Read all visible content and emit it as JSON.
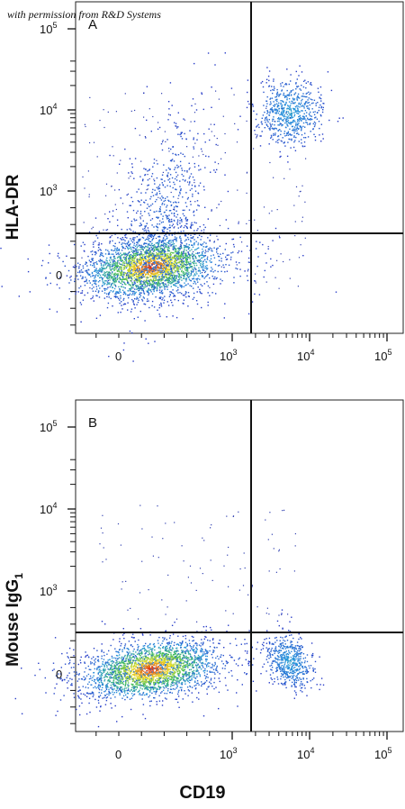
{
  "watermark": "with permission from R&D Systems",
  "x_axis_label": "CD19",
  "chart_data": [
    {
      "type": "scatter",
      "panel_label": "A",
      "ylabel": "HLA-DR",
      "xlabel": "CD19",
      "x_ticks": [
        {
          "value": 0,
          "label": "0"
        },
        {
          "value": 1000,
          "label": "10^3"
        },
        {
          "value": 10000,
          "label": "10^4"
        },
        {
          "value": 100000,
          "label": "10^5"
        }
      ],
      "y_ticks": [
        {
          "value": 0,
          "label": "0"
        },
        {
          "value": 1000,
          "label": "10^3"
        },
        {
          "value": 10000,
          "label": "10^4"
        },
        {
          "value": 100000,
          "label": "10^5"
        }
      ],
      "quadrant_gate": {
        "x": 2300,
        "y": 330
      },
      "populations": [
        {
          "name": "CD19- HLA-DR- (dense)",
          "center": {
            "x": 280,
            "y": 100
          },
          "spread": "wide"
        },
        {
          "name": "HLA-DR+ CD19- tail",
          "center": {
            "x": 400,
            "y": 900
          },
          "spread": "streak"
        },
        {
          "name": "CD19+ HLA-DR+",
          "center": {
            "x": 5500,
            "y": 9500
          },
          "spread": "compact"
        }
      ]
    },
    {
      "type": "scatter",
      "panel_label": "B",
      "ylabel": "Mouse IgG",
      "ylabel_subscript": "1",
      "xlabel": "CD19",
      "x_ticks": [
        {
          "value": 0,
          "label": "0"
        },
        {
          "value": 1000,
          "label": "10^3"
        },
        {
          "value": 10000,
          "label": "10^4"
        },
        {
          "value": 100000,
          "label": "10^5"
        }
      ],
      "y_ticks": [
        {
          "value": 0,
          "label": "0"
        },
        {
          "value": 1000,
          "label": "10^3"
        },
        {
          "value": 10000,
          "label": "10^4"
        },
        {
          "value": 100000,
          "label": "10^5"
        }
      ],
      "quadrant_gate": {
        "x": 2300,
        "y": 330
      },
      "populations": [
        {
          "name": "CD19- isotype",
          "center": {
            "x": 280,
            "y": 60
          },
          "spread": "wide"
        },
        {
          "name": "CD19+ isotype",
          "center": {
            "x": 5500,
            "y": 150
          },
          "spread": "compact"
        }
      ]
    }
  ]
}
